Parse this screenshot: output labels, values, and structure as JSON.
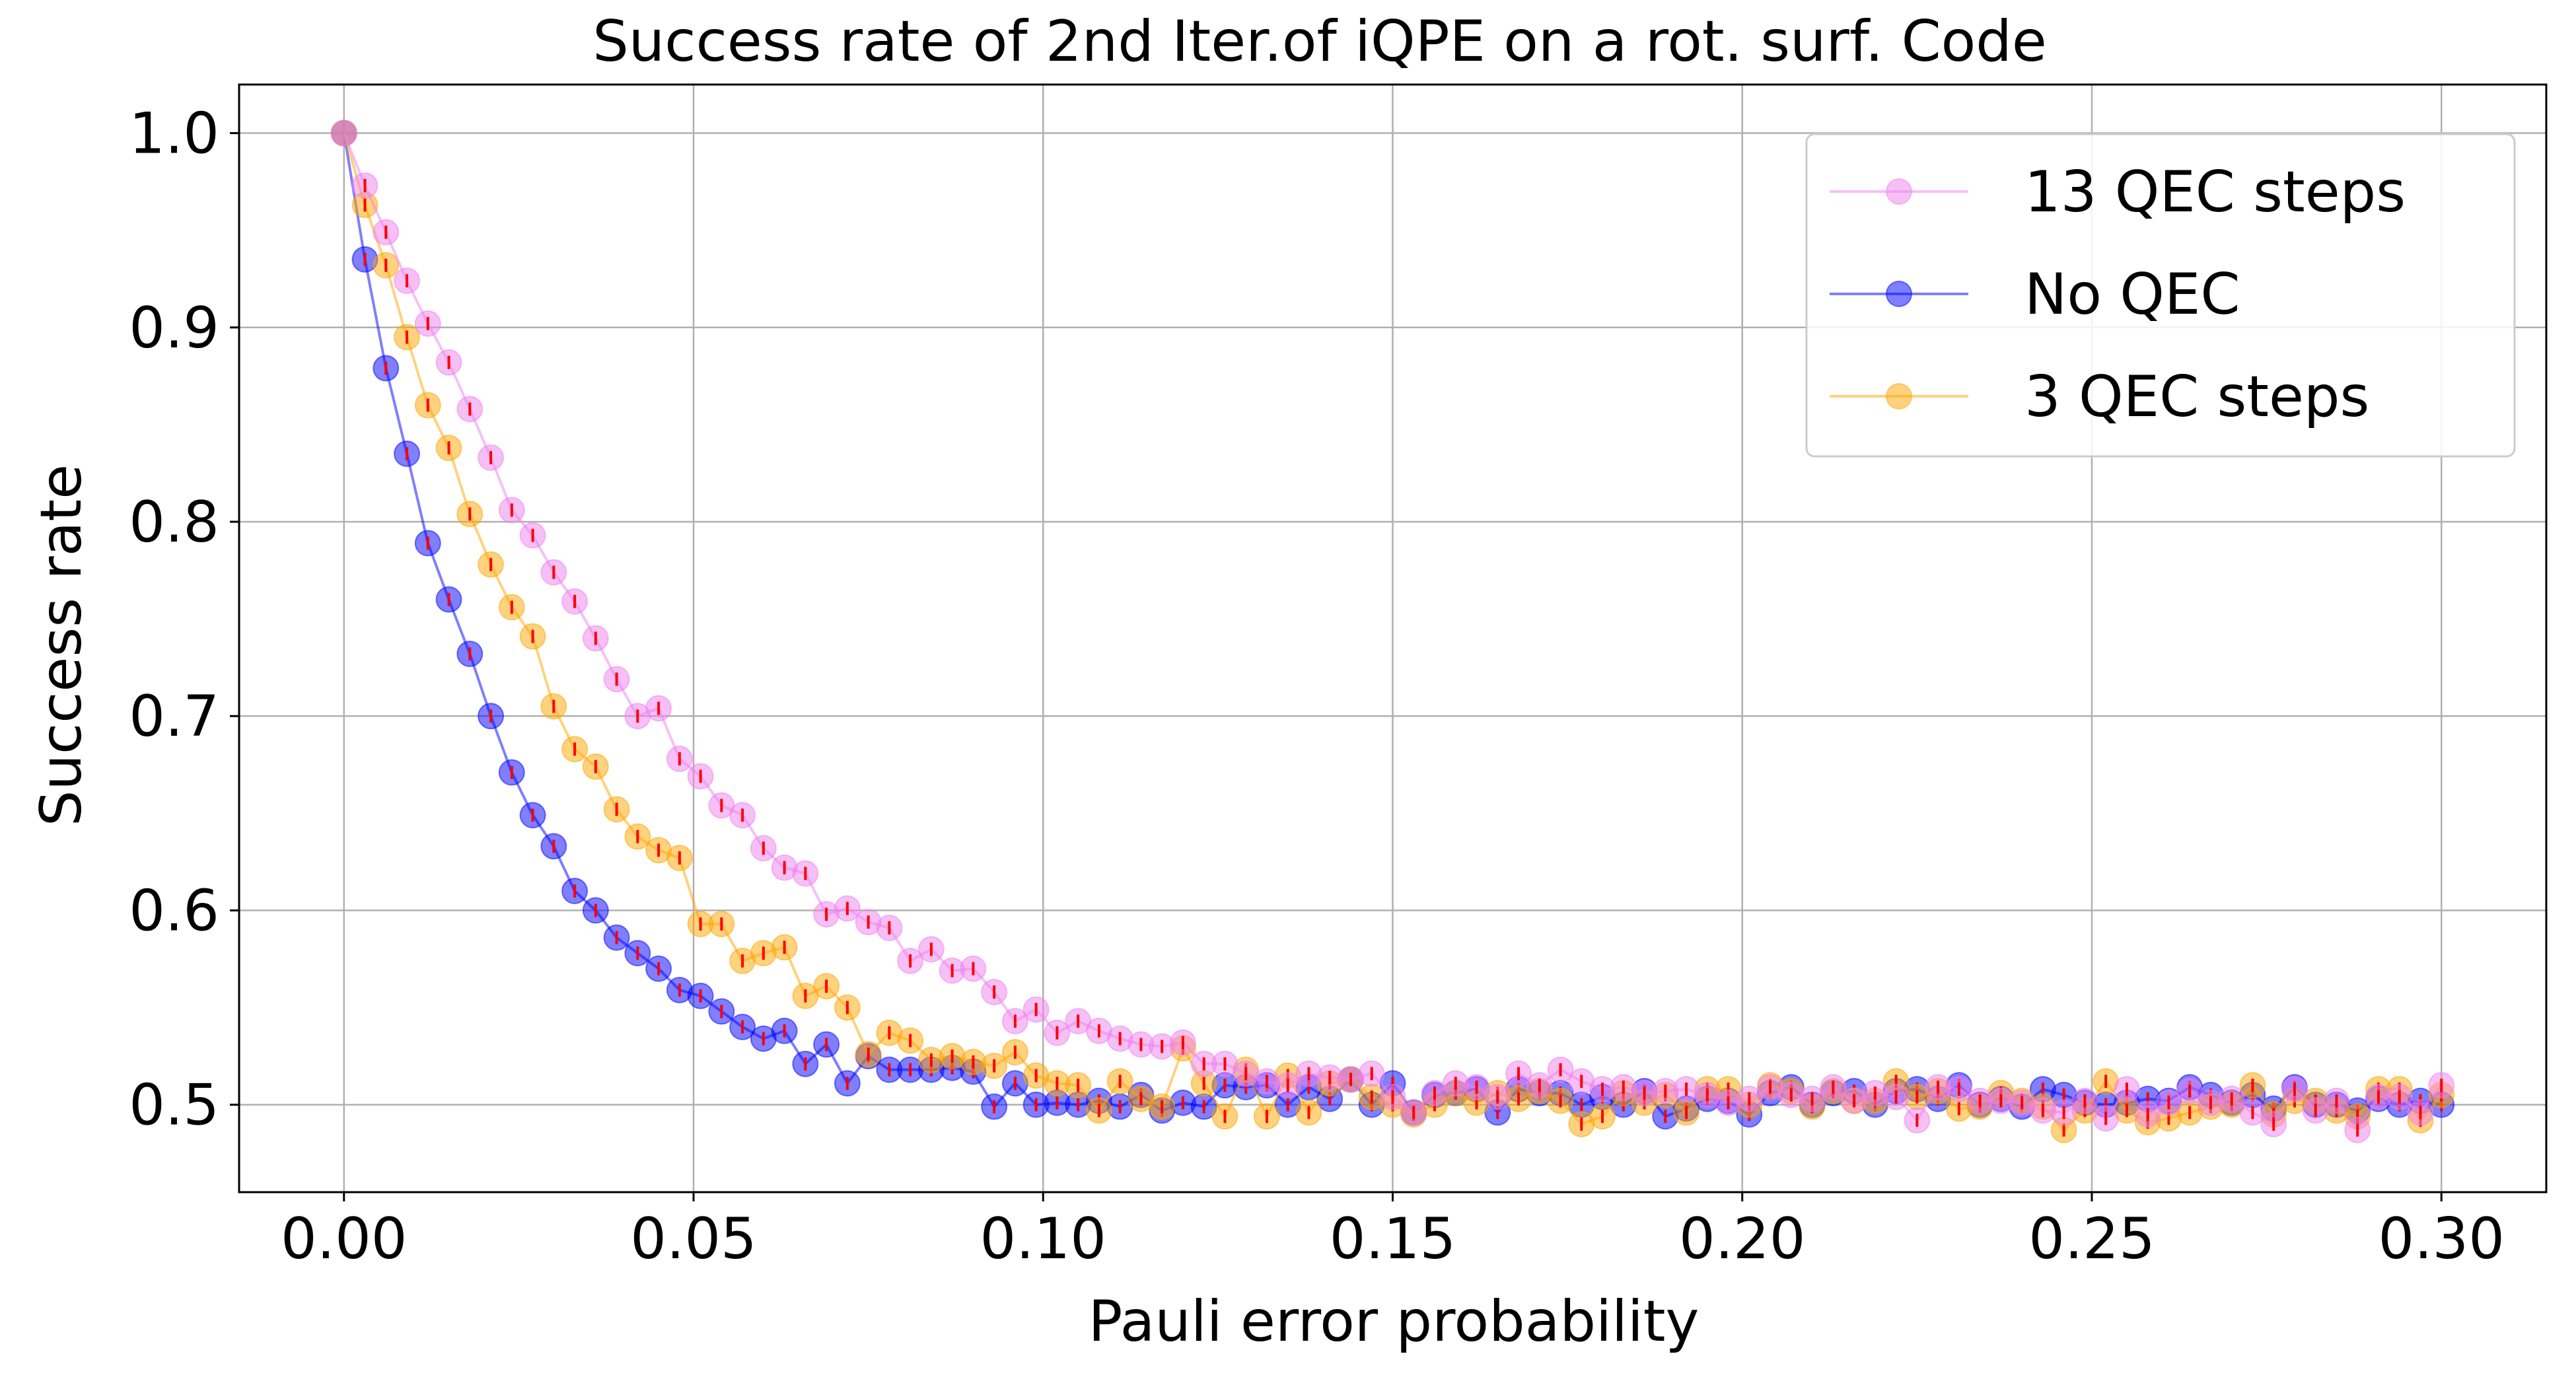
{
  "chart_data": {
    "type": "scatter",
    "title": "Success rate of 2nd Iter.of iQPE on a rot. surf. Code",
    "xlabel": "Pauli error probability",
    "ylabel": "Success rate",
    "xlim": [
      -0.015,
      0.315
    ],
    "ylim": [
      0.455,
      1.025
    ],
    "xticks": [
      0.0,
      0.05,
      0.1,
      0.15,
      0.2,
      0.25,
      0.3
    ],
    "xtick_labels": [
      "0.00",
      "0.05",
      "0.10",
      "0.15",
      "0.20",
      "0.25",
      "0.30"
    ],
    "yticks": [
      0.5,
      0.6,
      0.7,
      0.8,
      0.9,
      1.0
    ],
    "ytick_labels": [
      "0.5",
      "0.6",
      "0.7",
      "0.8",
      "0.9",
      "1.0"
    ],
    "grid": true,
    "legend_position": "top-right",
    "error_bar_color": "#ff0000",
    "series": [
      {
        "name": "13 QEC steps",
        "color": "#ee82ee",
        "x": [
          0.0,
          0.003,
          0.006,
          0.009,
          0.012,
          0.015,
          0.018,
          0.021,
          0.024,
          0.027,
          0.03,
          0.033,
          0.036,
          0.039,
          0.042,
          0.045,
          0.048,
          0.051,
          0.054,
          0.057,
          0.06,
          0.063,
          0.066,
          0.069,
          0.072,
          0.075,
          0.078,
          0.081,
          0.084,
          0.087,
          0.09,
          0.093,
          0.096,
          0.099,
          0.102,
          0.105,
          0.108,
          0.111,
          0.114,
          0.117,
          0.12,
          0.123,
          0.126,
          0.129,
          0.132,
          0.135,
          0.138,
          0.141,
          0.144,
          0.147,
          0.15,
          0.153,
          0.156,
          0.159,
          0.162,
          0.165,
          0.168,
          0.171,
          0.174,
          0.177,
          0.18,
          0.183,
          0.186,
          0.189,
          0.192,
          0.195,
          0.198,
          0.201,
          0.204,
          0.207,
          0.21,
          0.213,
          0.216,
          0.219,
          0.222,
          0.225,
          0.228,
          0.231,
          0.234,
          0.237,
          0.24,
          0.243,
          0.246,
          0.249,
          0.252,
          0.255,
          0.258,
          0.261,
          0.264,
          0.267,
          0.27,
          0.273,
          0.276,
          0.279,
          0.282,
          0.285,
          0.288,
          0.291,
          0.294,
          0.297,
          0.3
        ],
        "y": [
          1.0,
          0.973,
          0.949,
          0.924,
          0.902,
          0.882,
          0.858,
          0.833,
          0.806,
          0.793,
          0.774,
          0.759,
          0.74,
          0.719,
          0.7,
          0.704,
          0.678,
          0.669,
          0.654,
          0.649,
          0.632,
          0.622,
          0.619,
          0.598,
          0.601,
          0.594,
          0.591,
          0.574,
          0.58,
          0.569,
          0.57,
          0.558,
          0.543,
          0.549,
          0.537,
          0.543,
          0.538,
          0.534,
          0.531,
          0.53,
          0.532,
          0.521,
          0.521,
          0.516,
          0.512,
          0.51,
          0.516,
          0.514,
          0.513,
          0.516,
          0.504,
          0.496,
          0.506,
          0.511,
          0.509,
          0.504,
          0.516,
          0.51,
          0.518,
          0.512,
          0.508,
          0.509,
          0.506,
          0.507,
          0.508,
          0.505,
          0.501,
          0.503,
          0.509,
          0.505,
          0.503,
          0.509,
          0.502,
          0.506,
          0.504,
          0.492,
          0.509,
          0.508,
          0.502,
          0.502,
          0.501,
          0.497,
          0.496,
          0.502,
          0.493,
          0.508,
          0.495,
          0.501,
          0.507,
          0.501,
          0.503,
          0.496,
          0.49,
          0.508,
          0.497,
          0.502,
          0.487,
          0.504,
          0.504,
          0.496,
          0.51
        ]
      },
      {
        "name": "No QEC",
        "color": "#0000ff",
        "x": [
          0.0,
          0.003,
          0.006,
          0.009,
          0.012,
          0.015,
          0.018,
          0.021,
          0.024,
          0.027,
          0.03,
          0.033,
          0.036,
          0.039,
          0.042,
          0.045,
          0.048,
          0.051,
          0.054,
          0.057,
          0.06,
          0.063,
          0.066,
          0.069,
          0.072,
          0.075,
          0.078,
          0.081,
          0.084,
          0.087,
          0.09,
          0.093,
          0.096,
          0.099,
          0.102,
          0.105,
          0.108,
          0.111,
          0.114,
          0.117,
          0.12,
          0.123,
          0.126,
          0.129,
          0.132,
          0.135,
          0.138,
          0.141,
          0.144,
          0.147,
          0.15,
          0.153,
          0.156,
          0.159,
          0.162,
          0.165,
          0.168,
          0.171,
          0.174,
          0.177,
          0.18,
          0.183,
          0.186,
          0.189,
          0.192,
          0.195,
          0.198,
          0.201,
          0.204,
          0.207,
          0.21,
          0.213,
          0.216,
          0.219,
          0.222,
          0.225,
          0.228,
          0.231,
          0.234,
          0.237,
          0.24,
          0.243,
          0.246,
          0.249,
          0.252,
          0.255,
          0.258,
          0.261,
          0.264,
          0.267,
          0.27,
          0.273,
          0.276,
          0.279,
          0.282,
          0.285,
          0.288,
          0.291,
          0.294,
          0.297,
          0.3
        ],
        "y": [
          1.0,
          0.935,
          0.879,
          0.835,
          0.789,
          0.76,
          0.732,
          0.7,
          0.671,
          0.649,
          0.633,
          0.61,
          0.6,
          0.586,
          0.578,
          0.57,
          0.559,
          0.556,
          0.548,
          0.54,
          0.534,
          0.538,
          0.521,
          0.531,
          0.511,
          0.525,
          0.518,
          0.518,
          0.518,
          0.519,
          0.517,
          0.499,
          0.511,
          0.5,
          0.501,
          0.5,
          0.502,
          0.499,
          0.505,
          0.497,
          0.501,
          0.499,
          0.51,
          0.509,
          0.51,
          0.5,
          0.509,
          0.503,
          0.513,
          0.5,
          0.511,
          0.496,
          0.505,
          0.506,
          0.508,
          0.496,
          0.508,
          0.506,
          0.506,
          0.5,
          0.504,
          0.5,
          0.507,
          0.494,
          0.498,
          0.503,
          0.502,
          0.495,
          0.506,
          0.509,
          0.5,
          0.506,
          0.507,
          0.5,
          0.507,
          0.508,
          0.503,
          0.51,
          0.5,
          0.503,
          0.499,
          0.508,
          0.505,
          0.501,
          0.5,
          0.501,
          0.503,
          0.502,
          0.509,
          0.505,
          0.501,
          0.505,
          0.498,
          0.509,
          0.5,
          0.5,
          0.497,
          0.503,
          0.5,
          0.502,
          0.5
        ]
      },
      {
        "name": "3 QEC steps",
        "color": "#ffa500",
        "x": [
          0.0,
          0.003,
          0.006,
          0.009,
          0.012,
          0.015,
          0.018,
          0.021,
          0.024,
          0.027,
          0.03,
          0.033,
          0.036,
          0.039,
          0.042,
          0.045,
          0.048,
          0.051,
          0.054,
          0.057,
          0.06,
          0.063,
          0.066,
          0.069,
          0.072,
          0.075,
          0.078,
          0.081,
          0.084,
          0.087,
          0.09,
          0.093,
          0.096,
          0.099,
          0.102,
          0.105,
          0.108,
          0.111,
          0.114,
          0.117,
          0.12,
          0.123,
          0.126,
          0.129,
          0.132,
          0.135,
          0.138,
          0.141,
          0.144,
          0.147,
          0.15,
          0.153,
          0.156,
          0.159,
          0.162,
          0.165,
          0.168,
          0.171,
          0.174,
          0.177,
          0.18,
          0.183,
          0.186,
          0.189,
          0.192,
          0.195,
          0.198,
          0.201,
          0.204,
          0.207,
          0.21,
          0.213,
          0.216,
          0.219,
          0.222,
          0.225,
          0.228,
          0.231,
          0.234,
          0.237,
          0.24,
          0.243,
          0.246,
          0.249,
          0.252,
          0.255,
          0.258,
          0.261,
          0.264,
          0.267,
          0.27,
          0.273,
          0.276,
          0.279,
          0.282,
          0.285,
          0.288,
          0.291,
          0.294,
          0.297,
          0.3
        ],
        "y": [
          1.0,
          0.963,
          0.932,
          0.895,
          0.86,
          0.838,
          0.804,
          0.778,
          0.756,
          0.741,
          0.705,
          0.683,
          0.674,
          0.652,
          0.638,
          0.631,
          0.627,
          0.593,
          0.593,
          0.574,
          0.578,
          0.581,
          0.556,
          0.561,
          0.55,
          0.526,
          0.537,
          0.533,
          0.523,
          0.525,
          0.522,
          0.52,
          0.527,
          0.515,
          0.511,
          0.51,
          0.497,
          0.512,
          0.503,
          0.499,
          0.529,
          0.511,
          0.494,
          0.518,
          0.494,
          0.515,
          0.496,
          0.511,
          0.513,
          0.504,
          0.5,
          0.495,
          0.5,
          0.506,
          0.501,
          0.506,
          0.503,
          0.507,
          0.502,
          0.49,
          0.494,
          0.506,
          0.501,
          0.505,
          0.496,
          0.508,
          0.508,
          0.5,
          0.51,
          0.507,
          0.499,
          0.507,
          0.502,
          0.502,
          0.512,
          0.504,
          0.507,
          0.498,
          0.499,
          0.506,
          0.502,
          0.499,
          0.487,
          0.497,
          0.512,
          0.497,
          0.491,
          0.493,
          0.496,
          0.499,
          0.5,
          0.51,
          0.495,
          0.502,
          0.502,
          0.497,
          0.494,
          0.508,
          0.508,
          0.492,
          0.505
        ]
      }
    ]
  }
}
